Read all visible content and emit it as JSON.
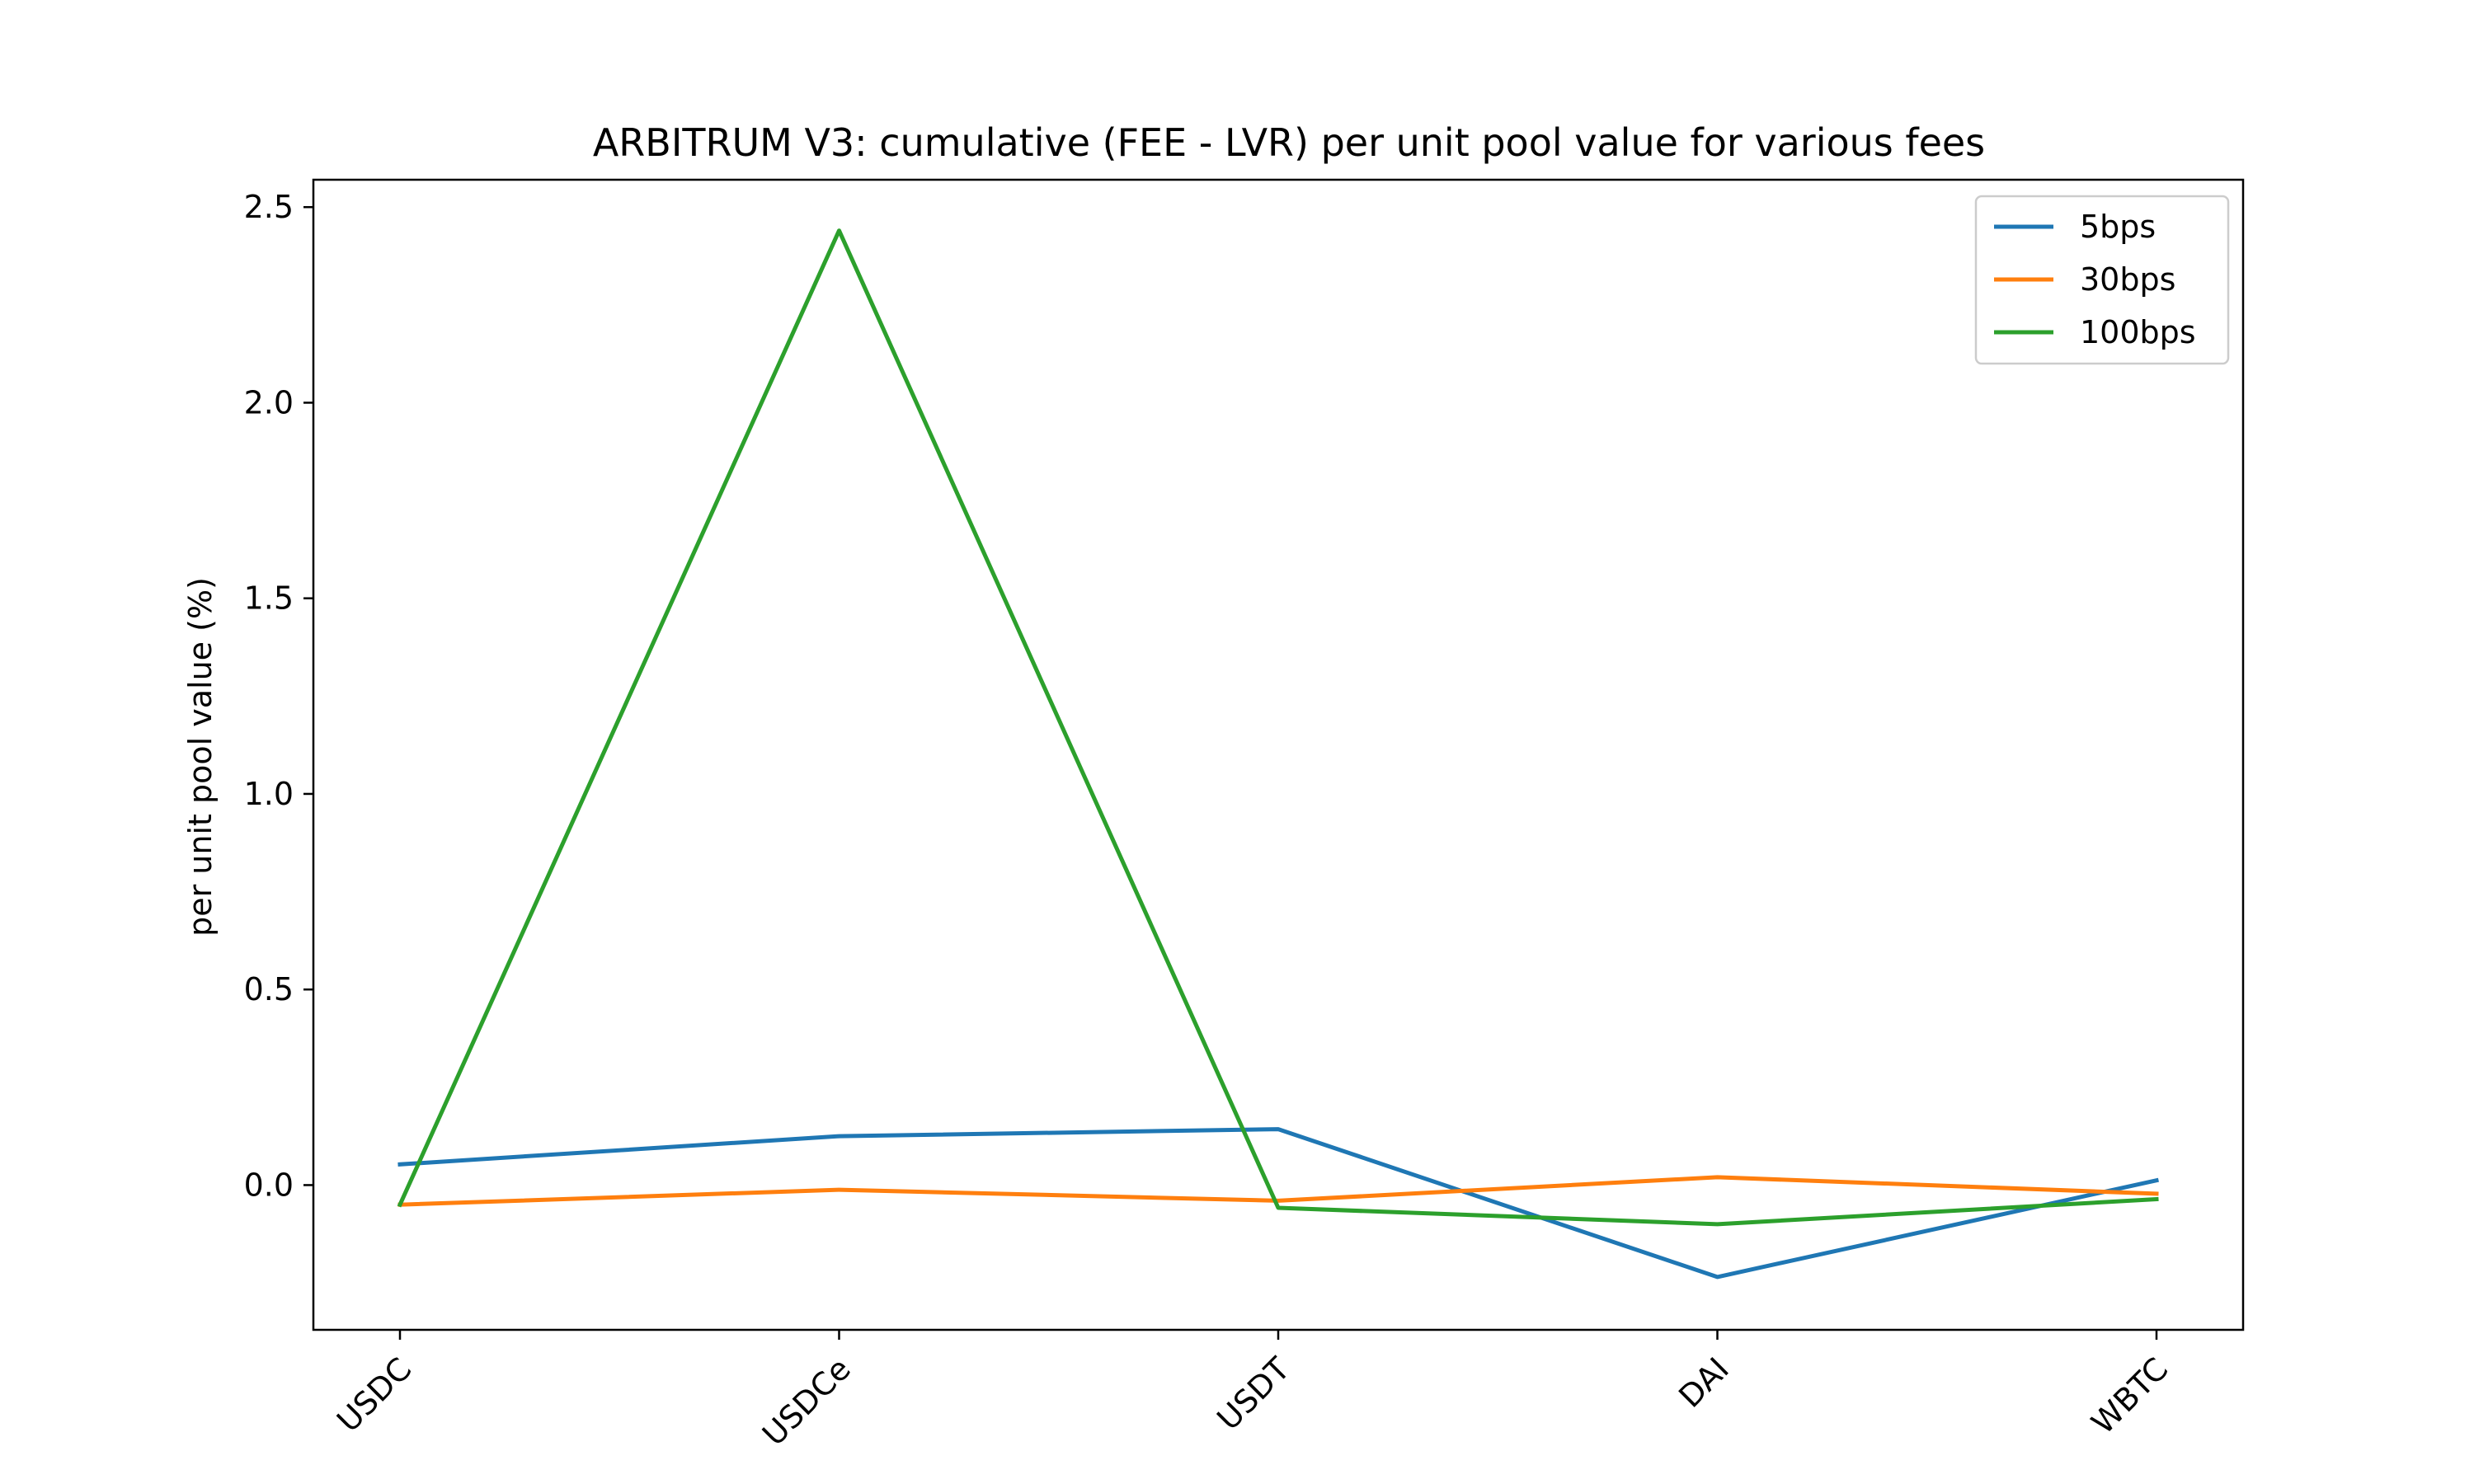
{
  "chart_data": {
    "type": "line",
    "title": "ARBITRUM V3: cumulative (FEE - LVR) per unit pool value for various fees",
    "xlabel": "",
    "ylabel": "per unit pool value (%)",
    "categories": [
      "USDC",
      "USDCe",
      "USDT",
      "DAI",
      "WBTC"
    ],
    "yticks": [
      "0.0",
      "0.5",
      "1.0",
      "1.5",
      "2.0",
      "2.5"
    ],
    "ylim": [
      -0.37,
      2.57
    ],
    "grid": false,
    "legend_position": "upper-right",
    "series": [
      {
        "name": "5bps",
        "color": "#1f77b4",
        "values": [
          0.053,
          0.125,
          0.143,
          -0.235,
          0.012
        ]
      },
      {
        "name": "30bps",
        "color": "#ff7f0e",
        "values": [
          -0.05,
          -0.012,
          -0.04,
          0.02,
          -0.022
        ]
      },
      {
        "name": "100bps",
        "color": "#2ca02c",
        "values": [
          -0.05,
          2.44,
          -0.058,
          -0.1,
          -0.036
        ]
      }
    ]
  }
}
